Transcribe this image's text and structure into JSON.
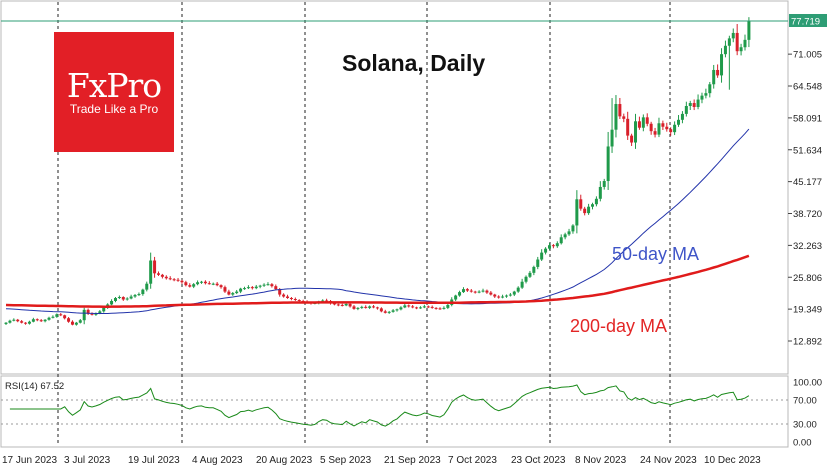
{
  "logo": {
    "name": "FxPro",
    "tagline": "Trade Like a Pro"
  },
  "colors": {
    "bull": "#1f9a4a",
    "bear": "#d81f2a",
    "ma50": "#2233aa",
    "ma200": "#e01b1b",
    "rsi": "#1a8a1a",
    "brand": "#e21f26",
    "last_price_bg": "#2e9d75"
  },
  "chart_data": [
    {
      "type": "candlestick",
      "title": "Solana, Daily",
      "last_price": "77.719",
      "y_ticks": [
        "77.719",
        "71.005",
        "64.548",
        "58.091",
        "51.634",
        "45.177",
        "38.720",
        "32.263",
        "25.806",
        "19.349",
        "12.892"
      ],
      "x_ticks": [
        "17 Jun 2023",
        "3 Jul 2023",
        "19 Jul 2023",
        "4 Aug 2023",
        "20 Aug 2023",
        "5 Sep 2023",
        "21 Sep 2023",
        "7 Oct 2023",
        "23 Oct 2023",
        "8 Nov 2023",
        "24 Nov 2023",
        "10 Dec 2023"
      ],
      "ylim": [
        9,
        79.5
      ],
      "grid": false,
      "series": [
        {
          "name": "Solana",
          "kind": "ohlc",
          "close": [
            16.6,
            17.0,
            17.2,
            16.9,
            16.6,
            16.4,
            16.8,
            17.3,
            17.1,
            16.9,
            17.2,
            17.6,
            17.8,
            18.3,
            18.1,
            17.5,
            16.8,
            16.2,
            16.6,
            17.1,
            19.2,
            18.4,
            18.2,
            18.5,
            18.9,
            19.6,
            20.3,
            21.0,
            21.6,
            21.8,
            21.3,
            21.5,
            21.9,
            22.2,
            22.4,
            23.3,
            24.5,
            29.2,
            26.6,
            26.3,
            25.9,
            25.6,
            25.4,
            25.3,
            25.1,
            24.8,
            24.2,
            23.9,
            24.4,
            24.8,
            24.9,
            24.6,
            24.5,
            24.5,
            24.2,
            23.8,
            22.9,
            22.3,
            22.6,
            22.9,
            23.5,
            23.6,
            23.8,
            23.6,
            23.9,
            24.1,
            24.3,
            24.4,
            24.0,
            23.4,
            22.3,
            21.9,
            21.6,
            21.4,
            21.2,
            21.0,
            20.8,
            20.7,
            20.5,
            20.6,
            20.9,
            21.1,
            21.0,
            20.5,
            20.3,
            20.2,
            20.1,
            20.4,
            19.9,
            19.4,
            19.6,
            19.8,
            19.6,
            19.9,
            19.7,
            19.5,
            18.9,
            18.6,
            18.8,
            19.1,
            19.3,
            19.7,
            20.1,
            19.9,
            19.7,
            19.6,
            19.7,
            19.9,
            19.8,
            19.6,
            19.5,
            19.4,
            19.6,
            20.2,
            21.3,
            22.1,
            22.8,
            23.4,
            23.1,
            22.9,
            22.8,
            22.9,
            23.1,
            22.7,
            22.3,
            21.9,
            21.7,
            21.9,
            22.1,
            22.3,
            22.9,
            23.7,
            24.9,
            25.9,
            26.7,
            27.9,
            29.4,
            30.8,
            31.6,
            32.3,
            32.1,
            32.7,
            33.9,
            34.5,
            35.1,
            36.3,
            41.6,
            39.7,
            38.8,
            40.1,
            40.6,
            41.7,
            44.1,
            45.3,
            52.3,
            55.7,
            60.9,
            58.4,
            57.9,
            54.5,
            53.1,
            57.4,
            56.1,
            58.2,
            56.9,
            55.4,
            54.7,
            57.0,
            56.3,
            55.8,
            55.2,
            56.7,
            57.7,
            58.9,
            60.5,
            61.1,
            60.3,
            61.8,
            62.6,
            63.1,
            64.9,
            67.8,
            66.7,
            71.0,
            72.7,
            74.2,
            75.3,
            71.6,
            72.4,
            73.9,
            77.7
          ]
        },
        {
          "name": "50-day MA",
          "kind": "moving_average",
          "period": 50
        },
        {
          "name": "200-day MA",
          "kind": "moving_average",
          "period": 200
        }
      ],
      "annotations": [
        "50-day MA",
        "200-day MA"
      ]
    },
    {
      "type": "line",
      "label": "RSI(14) 67.52",
      "y_ticks": [
        "100.00",
        "70.00",
        "30.00",
        "0.00"
      ],
      "levels": [
        70,
        30
      ],
      "ylim": [
        0,
        100
      ]
    }
  ]
}
